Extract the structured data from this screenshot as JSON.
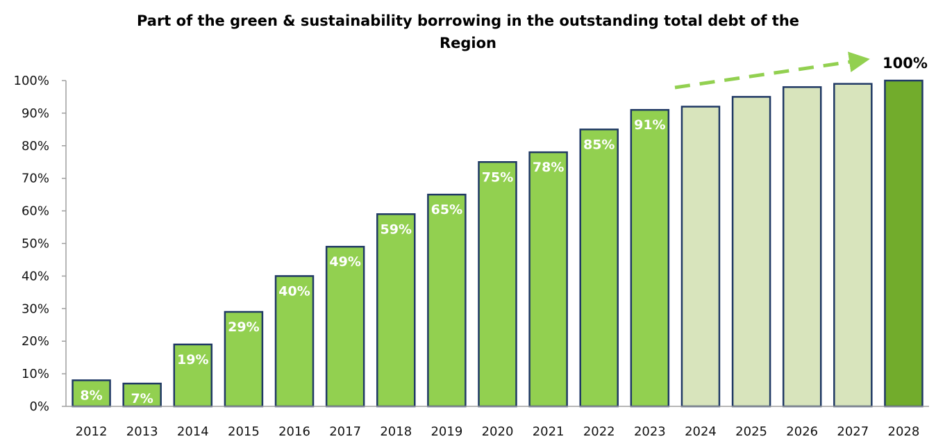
{
  "chart_data": {
    "type": "bar",
    "title_line1": "Part of the green & sustainability borrowing in the outstanding total debt of the",
    "title_line2": "Region",
    "categories": [
      "2012",
      "2013",
      "2014",
      "2015",
      "2016",
      "2017",
      "2018",
      "2019",
      "2020",
      "2021",
      "2022",
      "2023",
      "2024",
      "2025",
      "2026",
      "2027",
      "2028"
    ],
    "values": [
      8,
      7,
      19,
      29,
      40,
      49,
      59,
      65,
      75,
      78,
      85,
      91,
      92,
      95,
      98,
      99,
      100
    ],
    "value_labels": [
      "8%",
      "7%",
      "19%",
      "29%",
      "40%",
      "49%",
      "59%",
      "65%",
      "75%",
      "78%",
      "85%",
      "91%",
      "",
      "",
      "",
      "",
      "100%"
    ],
    "bar_type": [
      "actual",
      "actual",
      "actual",
      "actual",
      "actual",
      "actual",
      "actual",
      "actual",
      "actual",
      "actual",
      "actual",
      "actual",
      "projected",
      "projected",
      "projected",
      "projected",
      "target"
    ],
    "y_ticks": [
      "0%",
      "10%",
      "20%",
      "30%",
      "40%",
      "50%",
      "60%",
      "70%",
      "80%",
      "90%",
      "100%"
    ],
    "ylim": [
      0,
      100
    ],
    "grid": false,
    "legend": "none",
    "trend_arrow": "dashed green arrow rising from 2023 toward the 2028 bar",
    "colors": {
      "actual": "#92d050",
      "projected": "#d8e4bc",
      "target": "#72ac2c",
      "bar_outline": "#1f3864",
      "arrow": "#92d050",
      "axis": "#9e9e9e"
    }
  }
}
